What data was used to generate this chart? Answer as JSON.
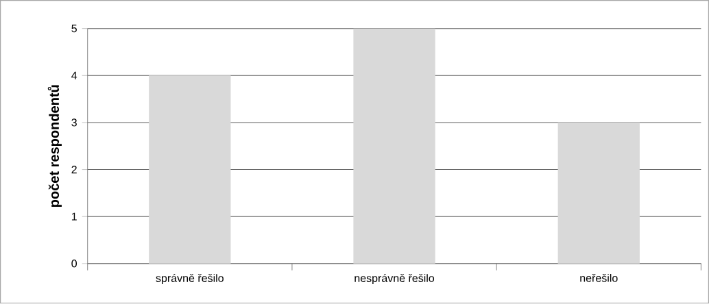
{
  "chart_data": {
    "type": "bar",
    "ylabel": "počet respondentů",
    "categories": [
      "správně řešilo",
      "nesprávně řešilo",
      "neřešilo"
    ],
    "values": [
      4,
      5,
      3
    ],
    "color": "#d9d9d9",
    "ylim": [
      0,
      5
    ],
    "yticks": [
      0,
      1,
      2,
      3,
      4,
      5
    ],
    "grid": "y"
  }
}
